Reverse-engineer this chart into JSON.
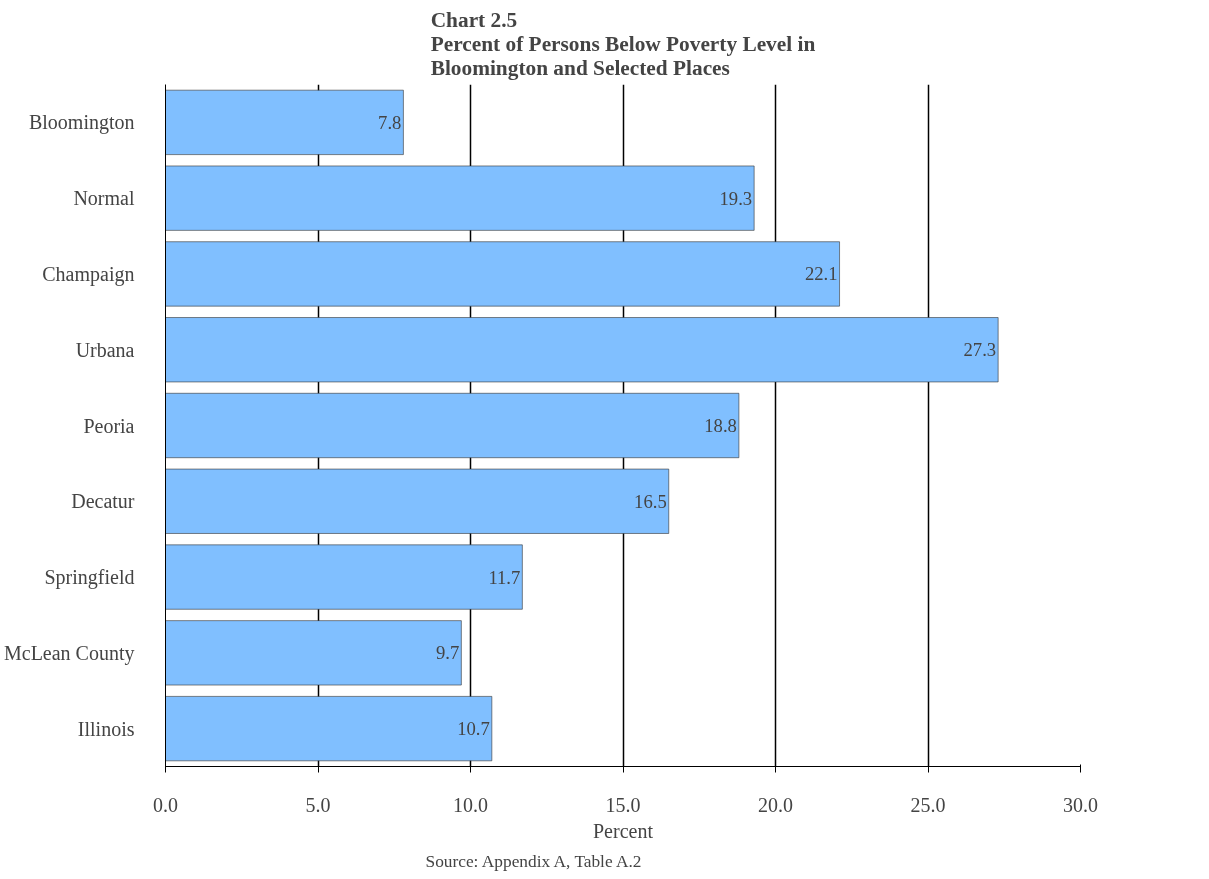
{
  "chart_data": {
    "type": "bar",
    "orientation": "horizontal",
    "title": "Chart 2.5\nPercent of Persons Below Poverty Level in\nBloomington and Selected Places",
    "categories": [
      "Bloomington",
      "Normal",
      "Champaign",
      "Urbana",
      "Peoria",
      "Decatur",
      "Springfield",
      "McLean County",
      "Illinois"
    ],
    "values": [
      7.8,
      19.3,
      22.1,
      27.3,
      18.8,
      16.5,
      11.7,
      9.7,
      10.7
    ],
    "color": "#80bfff",
    "data_labels": true,
    "xlabel": "Percent",
    "xlim": [
      0,
      30
    ],
    "xticks": [
      {
        "value": 0,
        "label": "0.0"
      },
      {
        "value": 5,
        "label": "5.0"
      },
      {
        "value": 10,
        "label": "10.0"
      },
      {
        "value": 15,
        "label": "15.0"
      },
      {
        "value": 20,
        "label": "20.0"
      },
      {
        "value": 25,
        "label": "25.0"
      },
      {
        "value": 30,
        "label": "30.0"
      }
    ],
    "grid": "x",
    "annotations": [
      "Source: Appendix A, Table A.2"
    ]
  }
}
